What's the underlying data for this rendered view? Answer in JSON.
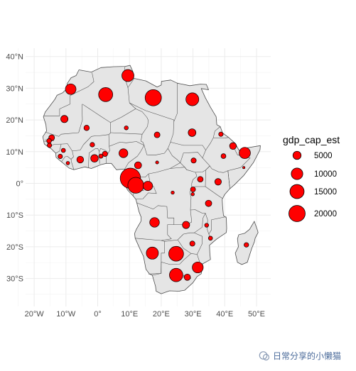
{
  "chart_data": {
    "type": "bubble-map",
    "title": "",
    "xlabel": "",
    "ylabel": "",
    "xlim": [
      -22,
      55
    ],
    "ylim": [
      -38,
      41
    ],
    "x_ticks": [
      -20,
      -10,
      0,
      10,
      20,
      30,
      40,
      50
    ],
    "y_ticks": [
      40,
      30,
      20,
      10,
      0,
      -10,
      -20,
      -30
    ],
    "x_tick_labels": [
      "20°W",
      "10°W",
      "0°",
      "10°E",
      "20°E",
      "30°E",
      "40°E",
      "50°E"
    ],
    "y_tick_labels": [
      "40°N",
      "30°N",
      "20°N",
      "10°N",
      "0°",
      "10°S",
      "20°S",
      "30°S"
    ],
    "grid": true,
    "land_fill": "#e5e5e5",
    "border_color": "#4d4d4d",
    "bubble_fill": "#ff0000",
    "bubble_stroke": "#000000",
    "legend": {
      "title": "gdp_cap_est",
      "position": "right",
      "entries": [
        {
          "label": "5000",
          "value": 5000
        },
        {
          "label": "10000",
          "value": 10000
        },
        {
          "label": "15000",
          "value": 15000
        },
        {
          "label": "20000",
          "value": 20000
        }
      ]
    },
    "points": [
      {
        "lon": 9.5,
        "lat": 34.0,
        "gdp": 11000
      },
      {
        "lon": 2.5,
        "lat": 28.0,
        "gdp": 15000
      },
      {
        "lon": 17.5,
        "lat": 27.0,
        "gdp": 20000
      },
      {
        "lon": 29.8,
        "lat": 26.5,
        "gdp": 12500
      },
      {
        "lon": -8.5,
        "lat": 29.7,
        "gdp": 8500
      },
      {
        "lon": -10.5,
        "lat": 20.3,
        "gdp": 4000
      },
      {
        "lon": -3.5,
        "lat": 17.5,
        "gdp": 2200
      },
      {
        "lon": 9.0,
        "lat": 17.5,
        "gdp": 1200
      },
      {
        "lon": 18.7,
        "lat": 15.3,
        "gdp": 2500
      },
      {
        "lon": 29.7,
        "lat": 16.0,
        "gdp": 4500
      },
      {
        "lon": 38.8,
        "lat": 15.5,
        "gdp": 1500
      },
      {
        "lon": 42.6,
        "lat": 11.8,
        "gdp": 3500
      },
      {
        "lon": 46.3,
        "lat": 9.6,
        "gdp": 9500
      },
      {
        "lon": 39.6,
        "lat": 8.6,
        "gdp": 1800
      },
      {
        "lon": 46.0,
        "lat": 5.0,
        "gdp": 400
      },
      {
        "lon": -14.5,
        "lat": 14.4,
        "gdp": 2500
      },
      {
        "lon": -15.3,
        "lat": 13.4,
        "gdp": 1700
      },
      {
        "lon": -15.2,
        "lat": 12.0,
        "gdp": 1500
      },
      {
        "lon": -10.8,
        "lat": 10.4,
        "gdp": 1300
      },
      {
        "lon": -11.8,
        "lat": 8.5,
        "gdp": 1500
      },
      {
        "lon": -9.4,
        "lat": 6.4,
        "gdp": 900
      },
      {
        "lon": -5.5,
        "lat": 7.5,
        "gdp": 3500
      },
      {
        "lon": -1.7,
        "lat": 12.2,
        "gdp": 1600
      },
      {
        "lon": -1.0,
        "lat": 7.9,
        "gdp": 4300
      },
      {
        "lon": 1.0,
        "lat": 8.6,
        "gdp": 1400
      },
      {
        "lon": 2.3,
        "lat": 9.3,
        "gdp": 2100
      },
      {
        "lon": 8.1,
        "lat": 9.5,
        "gdp": 5900
      },
      {
        "lon": 18.7,
        "lat": 6.6,
        "gdp": 700
      },
      {
        "lon": 30.2,
        "lat": 7.2,
        "gdp": 2000
      },
      {
        "lon": 12.7,
        "lat": 5.7,
        "gdp": 3700
      },
      {
        "lon": 10.3,
        "lat": 1.6,
        "gdp": 31000
      },
      {
        "lon": 12.0,
        "lat": -0.6,
        "gdp": 19000
      },
      {
        "lon": 15.8,
        "lat": -0.8,
        "gdp": 6700
      },
      {
        "lon": 23.6,
        "lat": -2.9,
        "gdp": 800
      },
      {
        "lon": 30.0,
        "lat": -1.9,
        "gdp": 1900
      },
      {
        "lon": 29.9,
        "lat": -3.4,
        "gdp": 800
      },
      {
        "lon": 32.3,
        "lat": 1.3,
        "gdp": 2400
      },
      {
        "lon": 37.9,
        "lat": 0.5,
        "gdp": 3300
      },
      {
        "lon": 34.9,
        "lat": -6.3,
        "gdp": 3100
      },
      {
        "lon": 17.9,
        "lat": -12.3,
        "gdp": 7000
      },
      {
        "lon": 27.8,
        "lat": -13.1,
        "gdp": 4000
      },
      {
        "lon": 34.3,
        "lat": -13.2,
        "gdp": 1200
      },
      {
        "lon": 35.5,
        "lat": -17.3,
        "gdp": 1300
      },
      {
        "lon": 29.8,
        "lat": -19.0,
        "gdp": 2000
      },
      {
        "lon": 46.8,
        "lat": -19.4,
        "gdp": 1600
      },
      {
        "lon": 17.2,
        "lat": -22.0,
        "gdp": 11000
      },
      {
        "lon": 24.7,
        "lat": -22.2,
        "gdp": 16500
      },
      {
        "lon": 24.7,
        "lat": -28.9,
        "gdp": 13500
      },
      {
        "lon": 31.5,
        "lat": -26.5,
        "gdp": 9000
      },
      {
        "lon": 28.2,
        "lat": -29.6,
        "gdp": 3000
      }
    ]
  },
  "watermark": {
    "text": "日常分享的小懒猫"
  }
}
